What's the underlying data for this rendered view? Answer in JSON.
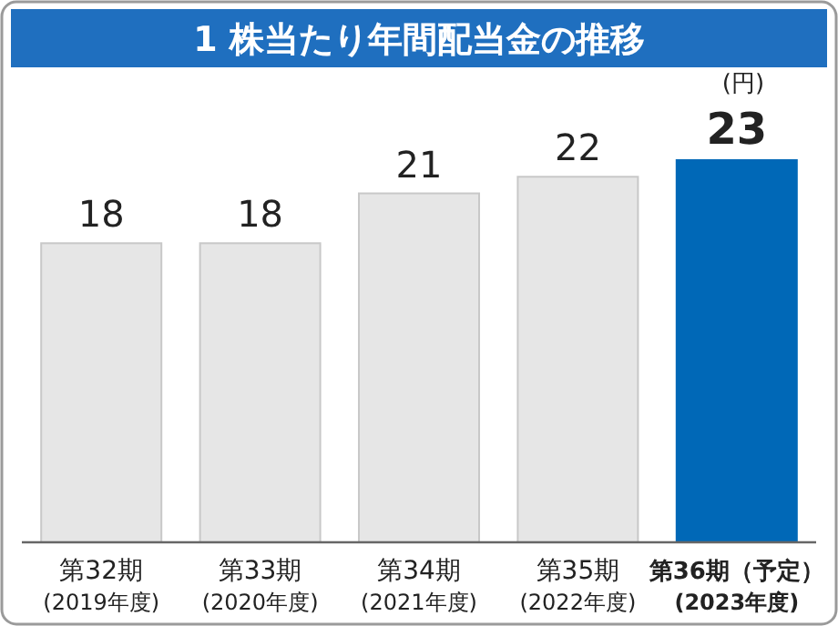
{
  "chart_data": {
    "type": "bar",
    "title": "1 株当たり年間配当金の推移",
    "ylabel": "(円)",
    "categories": [
      "第32期\n(2019年度)",
      "第33期\n(2020年度)",
      "第34期\n(2021年度)",
      "第35期\n(2022年度)",
      "第36期（予定）\n(2023年度)"
    ],
    "values": [
      18,
      18,
      21,
      22,
      23
    ],
    "colors": [
      "#e6e6e6",
      "#e6e6e6",
      "#e6e6e6",
      "#e6e6e6",
      "#0068b7"
    ],
    "data_labels": true
  }
}
